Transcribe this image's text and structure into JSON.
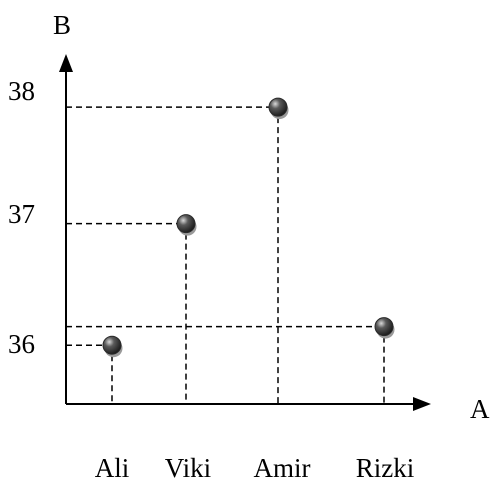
{
  "chart_data": {
    "type": "scatter",
    "xlabel": "A",
    "ylabel": "B",
    "categories": [
      "Ali",
      "Viki",
      "Amir",
      "Rizki"
    ],
    "values": [
      35.95,
      36.93,
      37.87,
      36.1
    ],
    "yticks": [
      36,
      37,
      38
    ],
    "ylim": [
      35.45,
      38.95
    ],
    "grid": false,
    "guide_lines": "dashed lines from each point to both axes",
    "marker_color": "#2b2b2b",
    "marker_shadow_color": "#9a9a9a"
  }
}
